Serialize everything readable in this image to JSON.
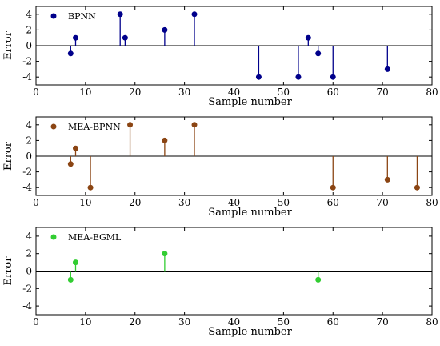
{
  "chart_data": [
    {
      "type": "stem",
      "legend": "BPNN",
      "color": "#00008b",
      "xlabel": "Sample number",
      "ylabel": "Error",
      "xlim": [
        0,
        80
      ],
      "ylim": [
        -5,
        5
      ],
      "xticks": [
        0,
        10,
        20,
        30,
        40,
        50,
        60,
        70,
        80
      ],
      "yticks": [
        -4,
        -2,
        0,
        2,
        4
      ],
      "x": [
        7,
        8,
        17,
        18,
        26,
        32,
        45,
        53,
        55,
        57,
        60,
        71
      ],
      "y": [
        -1,
        1,
        4,
        1,
        2,
        4,
        -4,
        -4,
        1,
        -1,
        -4,
        -3
      ]
    },
    {
      "type": "stem",
      "legend": "MEA-BPNN",
      "color": "#8b4513",
      "xlabel": "Sample number",
      "ylabel": "Error",
      "xlim": [
        0,
        80
      ],
      "ylim": [
        -5,
        5
      ],
      "xticks": [
        0,
        10,
        20,
        30,
        40,
        50,
        60,
        70,
        80
      ],
      "yticks": [
        -4,
        -2,
        0,
        2,
        4
      ],
      "x": [
        7,
        8,
        11,
        19,
        26,
        32,
        60,
        71,
        77
      ],
      "y": [
        -1,
        1,
        -4,
        4,
        2,
        4,
        -4,
        -3,
        -4
      ]
    },
    {
      "type": "stem",
      "legend": "MEA-EGML",
      "color": "#32cd32",
      "xlabel": "Sample number",
      "ylabel": "Error",
      "xlim": [
        0,
        80
      ],
      "ylim": [
        -5,
        5
      ],
      "xticks": [
        0,
        10,
        20,
        30,
        40,
        50,
        60,
        70,
        80
      ],
      "yticks": [
        -4,
        -2,
        0,
        2,
        4
      ],
      "x": [
        7,
        8,
        26,
        57
      ],
      "y": [
        -1,
        1,
        2,
        -1
      ]
    }
  ]
}
